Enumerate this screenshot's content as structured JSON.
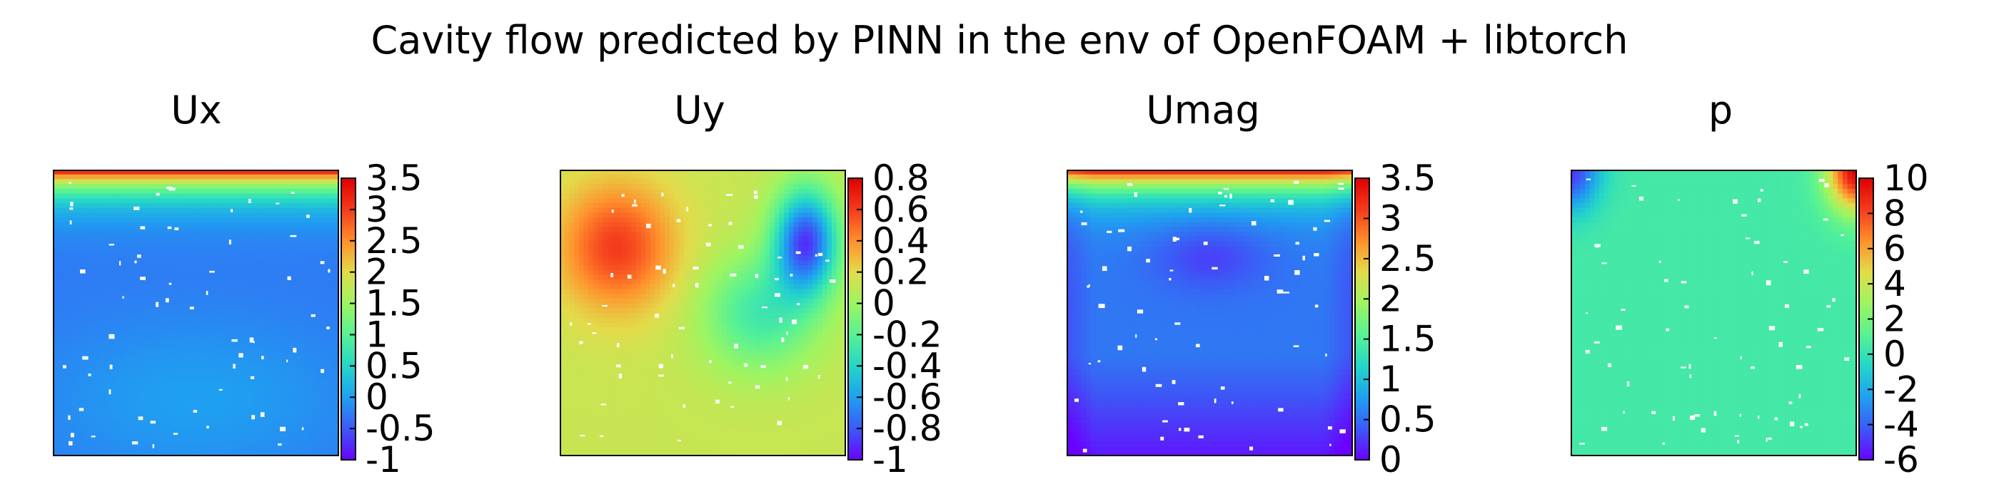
{
  "title": "Cavity flow predicted by PINN in the env of OpenFOAM + libtorch",
  "colors": {
    "colormap": [
      "#6a00ff",
      "#3c5af6",
      "#1fa0f0",
      "#24d6c8",
      "#57f294",
      "#9ef561",
      "#e3db4a",
      "#ff8f2c",
      "#f43b1c",
      "#e00000"
    ],
    "frame": "#000000",
    "background": "#ffffff"
  },
  "chart_data": [
    {
      "type": "heatmap",
      "title": "Ux",
      "colorbar_range": [
        -1,
        3.5
      ],
      "colorbar_ticks": [
        "3.5",
        "3",
        "2.5",
        "2",
        "1.5",
        "1",
        "0.5",
        "0",
        "-0.5",
        "-1"
      ],
      "colorbar_tick_values": [
        3.5,
        3,
        2.5,
        2,
        1.5,
        1,
        0.5,
        0,
        -0.5,
        -1
      ],
      "field_description": "lid-driven cavity; high values (~3.5) along top lid, ~0 in interior, slight negative below center",
      "field_samples": {
        "top_lid": 3.5,
        "below_lid": 1.5,
        "upper_interior": 0.3,
        "center": -0.3,
        "lower_interior": 0.1,
        "walls": 0.0
      }
    },
    {
      "type": "heatmap",
      "title": "Uy",
      "colorbar_range": [
        -1,
        0.8
      ],
      "colorbar_ticks": [
        "0.8",
        "0.6",
        "0.4",
        "0.2",
        "0",
        "-0.2",
        "-0.4",
        "-0.6",
        "-0.8",
        "-1"
      ],
      "colorbar_tick_values": [
        0.8,
        0.6,
        0.4,
        0.2,
        0,
        -0.2,
        -0.4,
        -0.6,
        -0.8,
        -1
      ],
      "field_description": "positive lobe (~0.6) upper-left, negative lobe (~-0.8) upper-right, ~0.1 elsewhere",
      "field_samples": {
        "upper_left_lobe": 0.6,
        "upper_right_lobe": -0.85,
        "center": 0.0,
        "bottom": 0.1
      }
    },
    {
      "type": "heatmap",
      "title": "Umag",
      "colorbar_range": [
        0,
        3.5
      ],
      "colorbar_ticks": [
        "3.5",
        "3",
        "2.5",
        "2",
        "1.5",
        "1",
        "0.5",
        "0"
      ],
      "colorbar_tick_values": [
        3.5,
        3,
        2.5,
        2,
        1.5,
        1,
        0.5,
        0
      ],
      "field_description": "high magnitude along top lid, low (~0.3) near center-top vortex, ~0.5-1 mid, ~0 at bottom corners",
      "field_samples": {
        "top_lid": 3.5,
        "below_lid": 2.0,
        "vortex_center": 0.3,
        "middle": 0.8,
        "bottom": 0.1
      }
    },
    {
      "type": "heatmap",
      "title": "p",
      "colorbar_range": [
        -6,
        10
      ],
      "colorbar_ticks": [
        "10",
        "8",
        "6",
        "4",
        "2",
        "0",
        "-2",
        "-4",
        "-6"
      ],
      "colorbar_tick_values": [
        10,
        8,
        6,
        4,
        2,
        0,
        -2,
        -4,
        -6
      ],
      "field_description": "near 0 almost everywhere; low (~-5) at top-left corner, high (~10) at top-right corner",
      "field_samples": {
        "top_left_corner": -5,
        "top_right_corner": 10,
        "interior": 0.5
      }
    }
  ]
}
